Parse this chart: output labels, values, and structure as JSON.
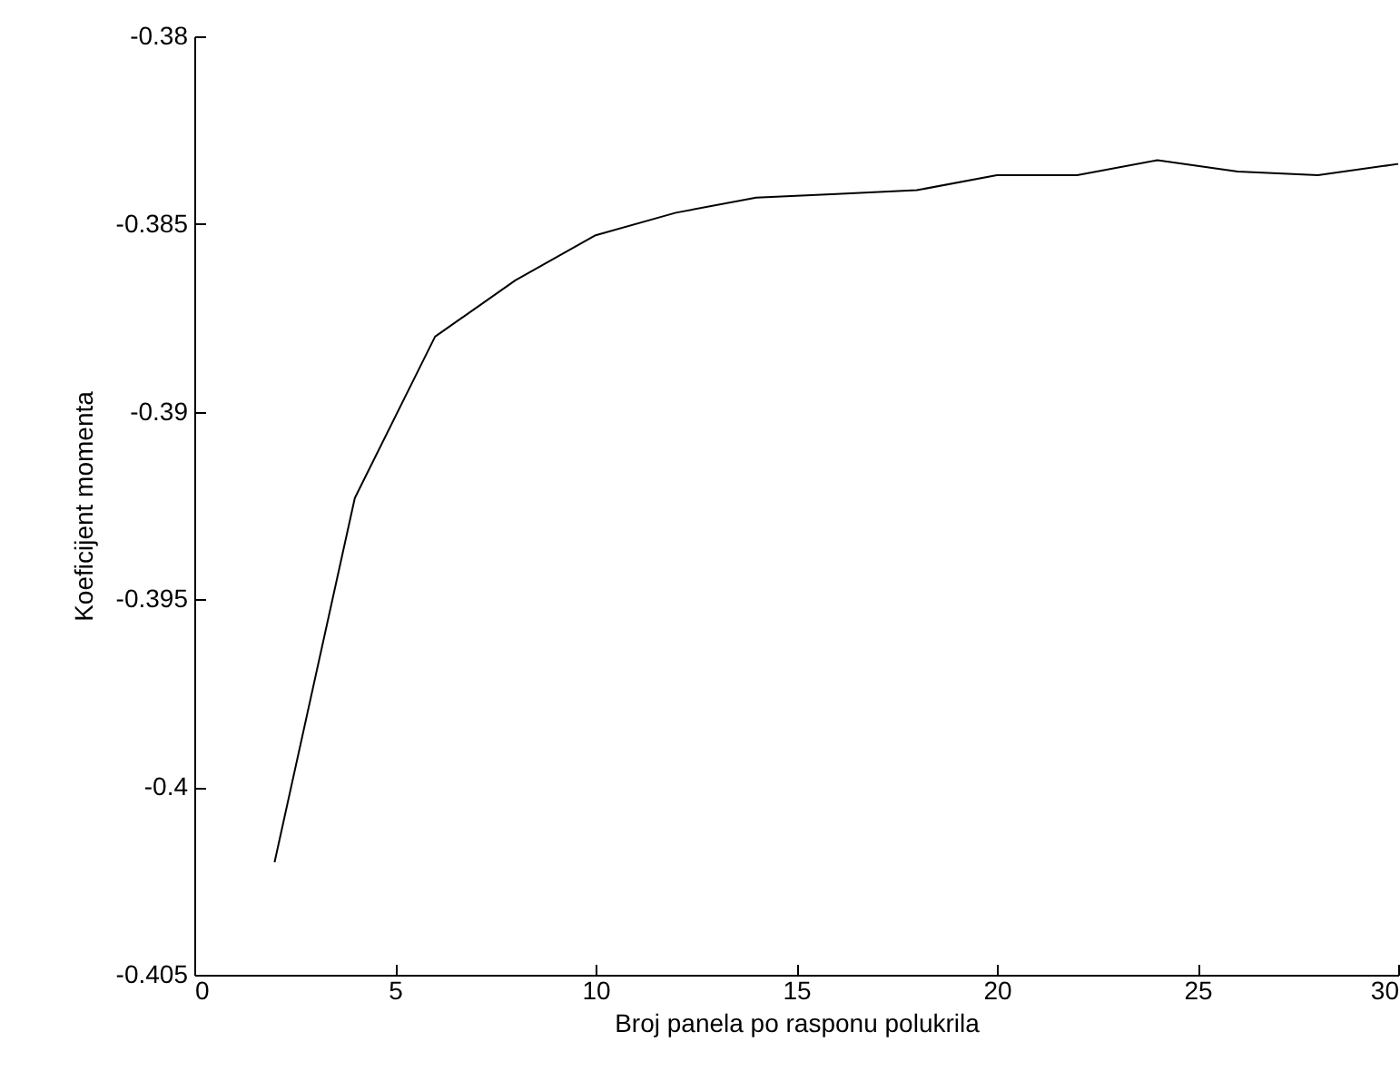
{
  "chart_data": {
    "type": "line",
    "xlabel": "Broj panela po rasponu polukrila",
    "ylabel": "Koeficijent momenta",
    "x": [
      2,
      4,
      6,
      8,
      10,
      12,
      14,
      16,
      18,
      20,
      22,
      24,
      26,
      28,
      30
    ],
    "series": [
      {
        "color": "#000000",
        "values": [
          -0.402,
          -0.3923,
          -0.388,
          -0.3865,
          -0.3853,
          -0.3847,
          -0.3843,
          -0.3842,
          -0.3841,
          -0.3837,
          -0.3837,
          -0.3833,
          -0.3836,
          -0.3837,
          -0.3834
        ]
      }
    ],
    "xlim": [
      0,
      30
    ],
    "xticks": [
      0,
      5,
      10,
      15,
      20,
      25,
      30
    ],
    "ylim": [
      -0.405,
      -0.38
    ],
    "yticks": [
      -0.405,
      -0.4,
      -0.395,
      -0.39,
      -0.385,
      -0.38
    ],
    "grid": false,
    "marker": "none",
    "line_style": "solid"
  }
}
